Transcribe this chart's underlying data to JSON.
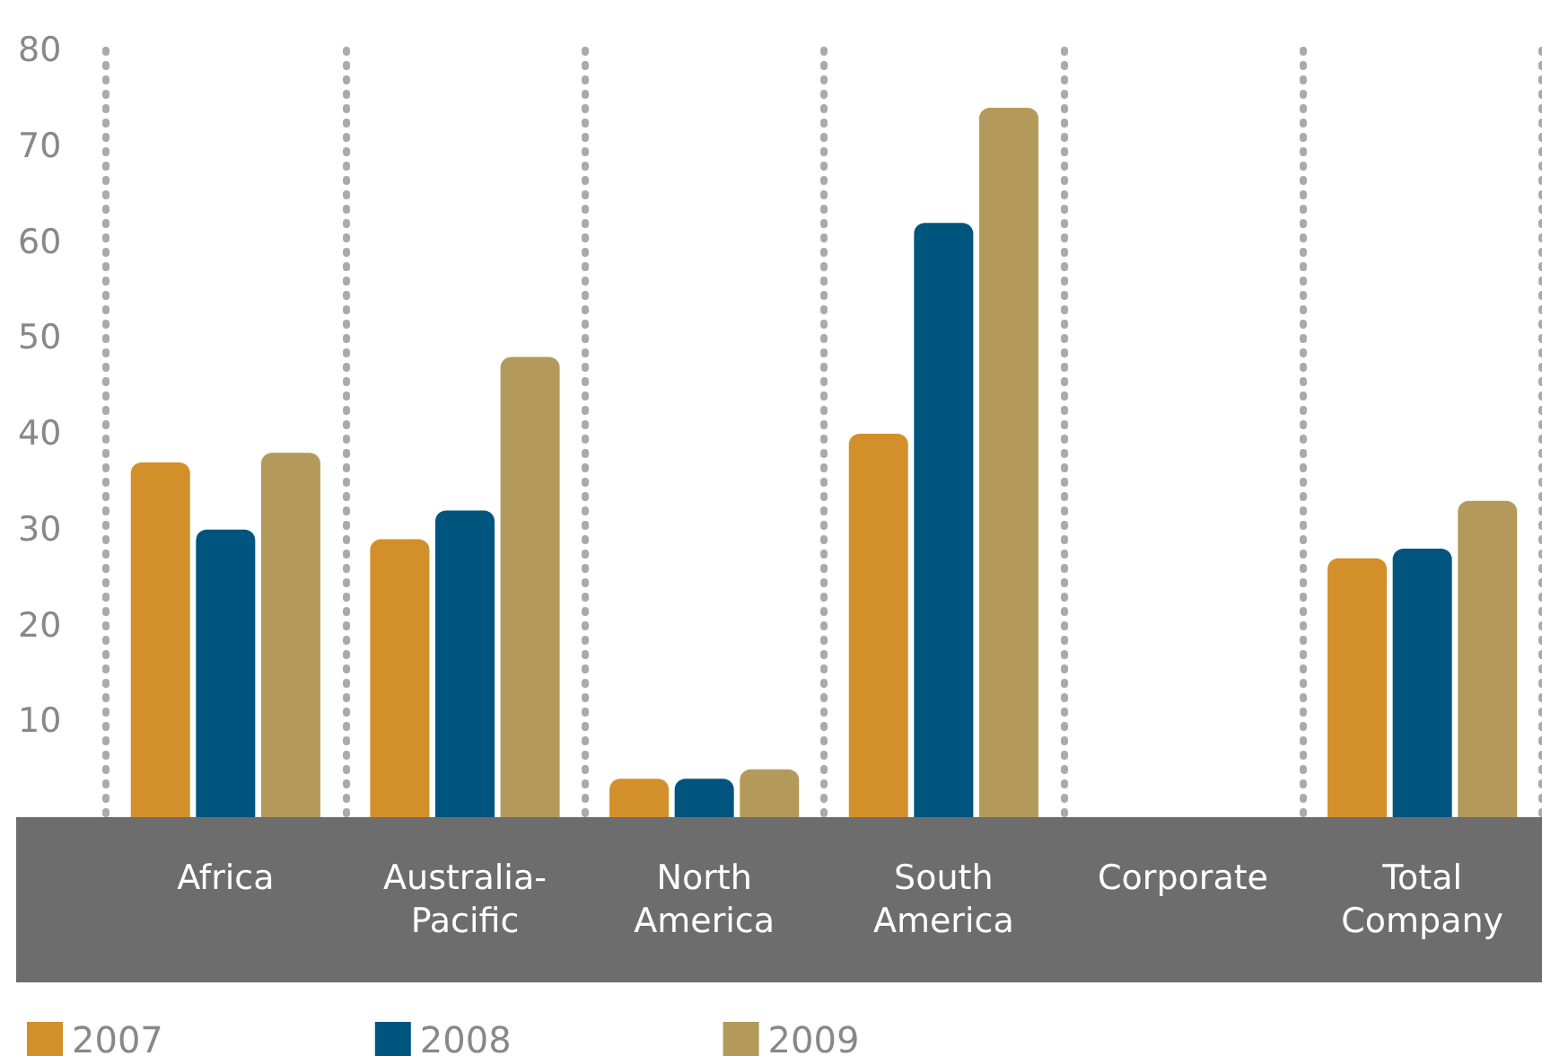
{
  "chart_data": {
    "type": "bar",
    "categories": [
      "Africa",
      "Australia-\nPacific",
      "North\nAmerica",
      "South\nAmerica",
      "Corporate",
      "Total\nCompany"
    ],
    "series": [
      {
        "name": "2007",
        "color": "#d38f2a",
        "values": [
          37,
          29,
          4,
          40,
          null,
          27
        ]
      },
      {
        "name": "2008",
        "color": "#00557f",
        "values": [
          30,
          32,
          4,
          62,
          null,
          28
        ]
      },
      {
        "name": "2009",
        "color": "#b39a5b",
        "values": [
          38,
          48,
          5,
          74,
          null,
          33
        ]
      }
    ],
    "ylim": [
      0,
      80
    ],
    "yticks": [
      10,
      20,
      30,
      40,
      50,
      60,
      70,
      80
    ],
    "grid": "x",
    "legend": "bottom left"
  }
}
